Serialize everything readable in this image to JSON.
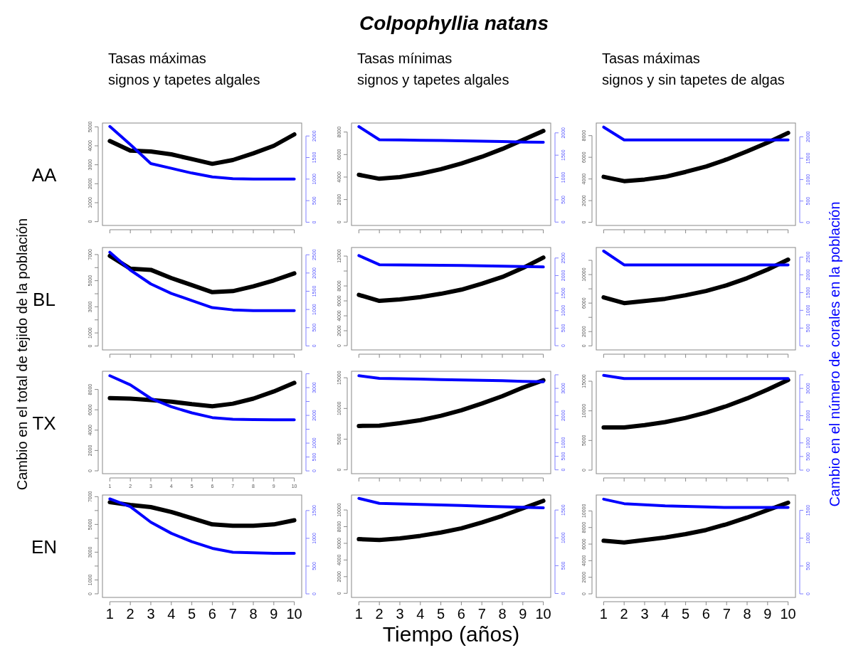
{
  "chart_data": [
    {
      "type": "line",
      "title": "Tasas máximas",
      "subtitle": "signos y tapetes algales",
      "ylabel": "AA",
      "annotations": [
        "Colpophyllia natans",
        "Cambio en el total de tejido de la población",
        "Cambio en el número de corales en la población"
      ],
      "x": [
        1,
        2,
        3,
        4,
        5,
        6,
        7,
        8,
        9,
        10
      ],
      "xlim": [
        0.64,
        10.36
      ],
      "xticks": [
        {
          "value": 1,
          "label": null
        },
        {
          "value": 2,
          "label": null
        },
        {
          "value": 3,
          "label": null
        },
        {
          "value": 4,
          "label": null
        },
        {
          "value": 5,
          "label": null
        },
        {
          "value": 6,
          "label": null
        },
        {
          "value": 7,
          "label": null
        },
        {
          "value": 8,
          "label": null
        },
        {
          "value": 9,
          "label": null
        },
        {
          "value": 10,
          "label": null
        }
      ],
      "ylim": [
        -200,
        5200
      ],
      "yticks": [
        0,
        1000,
        2000,
        3000,
        4000,
        5000
      ],
      "y2lim": [
        -75,
        2300
      ],
      "y2ticks": [
        0,
        500,
        1000,
        1500,
        2000
      ],
      "tick_labels": "y",
      "series": [
        {
          "color": "#000000",
          "values": [
            4250,
            3750,
            3700,
            3550,
            3300,
            3050,
            3250,
            3600,
            4000,
            4600
          ]
        },
        {
          "color": "#0000ff",
          "axis": "y2",
          "values": [
            2220,
            1800,
            1360,
            1250,
            1140,
            1050,
            1010,
            1000,
            1000,
            1000
          ]
        }
      ]
    },
    {
      "type": "line",
      "title": "Tasas mínimas",
      "subtitle": "signos y tapetes algales",
      "x": [
        1,
        2,
        3,
        4,
        5,
        6,
        7,
        8,
        9,
        10
      ],
      "xlim": [
        0.64,
        10.36
      ],
      "xticks": [
        {
          "value": 1,
          "label": null
        },
        {
          "value": 2,
          "label": null
        },
        {
          "value": 3,
          "label": null
        },
        {
          "value": 4,
          "label": null
        },
        {
          "value": 5,
          "label": null
        },
        {
          "value": 6,
          "label": null
        },
        {
          "value": 7,
          "label": null
        },
        {
          "value": 8,
          "label": null
        },
        {
          "value": 9,
          "label": null
        },
        {
          "value": 10,
          "label": null
        }
      ],
      "ylim": [
        -300,
        8800
      ],
      "yticks": [
        0,
        2000,
        4000,
        6000,
        8000
      ],
      "y2lim": [
        -75,
        2220
      ],
      "y2ticks": [
        0,
        500,
        1000,
        1500,
        2000
      ],
      "tick_labels": "y",
      "series": [
        {
          "color": "#000000",
          "values": [
            4200,
            3850,
            4000,
            4300,
            4700,
            5200,
            5800,
            6500,
            7300,
            8100
          ]
        },
        {
          "color": "#0000ff",
          "axis": "y2",
          "values": [
            2140,
            1845,
            1840,
            1835,
            1830,
            1820,
            1815,
            1805,
            1795,
            1790
          ]
        }
      ]
    },
    {
      "type": "line",
      "title": "Tasas máximas",
      "subtitle": "signos y sin tapetes de algas",
      "x": [
        1,
        2,
        3,
        4,
        5,
        6,
        7,
        8,
        9,
        10
      ],
      "xlim": [
        0.64,
        10.36
      ],
      "xticks": [
        {
          "value": 1,
          "label": null
        },
        {
          "value": 2,
          "label": null
        },
        {
          "value": 3,
          "label": null
        },
        {
          "value": 4,
          "label": null
        },
        {
          "value": 5,
          "label": null
        },
        {
          "value": 6,
          "label": null
        },
        {
          "value": 7,
          "label": null
        },
        {
          "value": 8,
          "label": null
        },
        {
          "value": 9,
          "label": null
        },
        {
          "value": 10,
          "label": null
        }
      ],
      "ylim": [
        -290,
        9160
      ],
      "yticks": [
        0,
        2000,
        4000,
        6000,
        8000
      ],
      "y2lim": [
        -70,
        2320
      ],
      "y2ticks": [
        0,
        500,
        1000,
        1500,
        2000
      ],
      "tick_labels": "y",
      "series": [
        {
          "color": "#000000",
          "values": [
            4200,
            3800,
            3950,
            4200,
            4650,
            5150,
            5800,
            6550,
            7350,
            8250
          ]
        },
        {
          "color": "#0000ff",
          "axis": "y2",
          "values": [
            2225,
            1925,
            1925,
            1925,
            1925,
            1925,
            1925,
            1925,
            1925,
            1925
          ]
        }
      ]
    },
    {
      "type": "line",
      "ylabel": "BL",
      "x": [
        1,
        2,
        3,
        4,
        5,
        6,
        7,
        8,
        9,
        10
      ],
      "xlim": [
        0.64,
        10.36
      ],
      "xticks": [
        {
          "value": 1,
          "label": null
        },
        {
          "value": 2,
          "label": null
        },
        {
          "value": 3,
          "label": null
        },
        {
          "value": 4,
          "label": null
        },
        {
          "value": 5,
          "label": null
        },
        {
          "value": 6,
          "label": null
        },
        {
          "value": 7,
          "label": null
        },
        {
          "value": 8,
          "label": null
        },
        {
          "value": 9,
          "label": null
        },
        {
          "value": 10,
          "label": null
        }
      ],
      "ylim": [
        -300,
        7540
      ],
      "yticks": [
        0,
        1000,
        {
          "value": 2000,
          "label": null
        },
        3000,
        {
          "value": 4000,
          "label": null
        },
        5000,
        {
          "value": 6000,
          "label": null
        },
        7000
      ],
      "y2lim": [
        -110,
        2700
      ],
      "y2ticks": [
        0,
        500,
        1000,
        1500,
        2000,
        2500
      ],
      "tick_labels": "y",
      "series": [
        {
          "color": "#000000",
          "values": [
            6900,
            5920,
            5830,
            5200,
            4660,
            4120,
            4200,
            4570,
            5020,
            5560
          ]
        },
        {
          "color": "#0000ff",
          "axis": "y2",
          "values": [
            2570,
            2080,
            1700,
            1440,
            1245,
            1050,
            990,
            970,
            970,
            970
          ]
        }
      ]
    },
    {
      "type": "line",
      "x": [
        1,
        2,
        3,
        4,
        5,
        6,
        7,
        8,
        9,
        10
      ],
      "xlim": [
        0.64,
        10.36
      ],
      "xticks": [
        {
          "value": 1,
          "label": null
        },
        {
          "value": 2,
          "label": null
        },
        {
          "value": 3,
          "label": null
        },
        {
          "value": 4,
          "label": null
        },
        {
          "value": 5,
          "label": null
        },
        {
          "value": 6,
          "label": null
        },
        {
          "value": 7,
          "label": null
        },
        {
          "value": 8,
          "label": null
        },
        {
          "value": 9,
          "label": null
        },
        {
          "value": 10,
          "label": null
        }
      ],
      "ylim": [
        -570,
        13150
      ],
      "yticks": [
        0,
        2000,
        4000,
        6000,
        8000,
        {
          "value": 10000,
          "label": null
        },
        12000
      ],
      "y2lim": [
        -120,
        2800
      ],
      "y2ticks": [
        0,
        500,
        1000,
        1500,
        2000,
        2500
      ],
      "tick_labels": "y",
      "series": [
        {
          "color": "#000000",
          "values": [
            6800,
            6000,
            6200,
            6500,
            6950,
            7500,
            8300,
            9200,
            10400,
            11800
          ]
        },
        {
          "color": "#0000ff",
          "axis": "y2",
          "values": [
            2570,
            2310,
            2305,
            2300,
            2295,
            2290,
            2280,
            2270,
            2260,
            2245
          ]
        }
      ]
    },
    {
      "type": "line",
      "x": [
        1,
        2,
        3,
        4,
        5,
        6,
        7,
        8,
        9,
        10
      ],
      "xlim": [
        0.64,
        10.36
      ],
      "xticks": [
        {
          "value": 1,
          "label": null
        },
        {
          "value": 2,
          "label": null
        },
        {
          "value": 3,
          "label": null
        },
        {
          "value": 4,
          "label": null
        },
        {
          "value": 5,
          "label": null
        },
        {
          "value": 6,
          "label": null
        },
        {
          "value": 7,
          "label": null
        },
        {
          "value": 8,
          "label": null
        },
        {
          "value": 9,
          "label": null
        },
        {
          "value": 10,
          "label": null
        }
      ],
      "ylim": [
        -570,
        13800
      ],
      "yticks": [
        0,
        2000,
        {
          "value": 4000,
          "label": null
        },
        6000,
        {
          "value": 8000,
          "label": null
        },
        10000,
        {
          "value": 12000,
          "label": null
        }
      ],
      "y2lim": [
        -115,
        2770
      ],
      "y2ticks": [
        0,
        500,
        1000,
        1500,
        2000,
        2500
      ],
      "tick_labels": "y",
      "series": [
        {
          "color": "#000000",
          "values": [
            6800,
            6000,
            6300,
            6600,
            7100,
            7700,
            8500,
            9500,
            10700,
            12100
          ]
        },
        {
          "color": "#0000ff",
          "axis": "y2",
          "values": [
            2670,
            2280,
            2280,
            2280,
            2280,
            2280,
            2280,
            2280,
            2280,
            2280
          ]
        }
      ]
    },
    {
      "type": "line",
      "ylabel": "TX",
      "x": [
        1,
        2,
        3,
        4,
        5,
        6,
        7,
        8,
        9,
        10
      ],
      "xlim": [
        0.64,
        10.36
      ],
      "xticks": [
        1,
        2,
        3,
        4,
        5,
        6,
        7,
        8,
        9,
        10
      ],
      "ylim": [
        -280,
        9790
      ],
      "yticks": [
        0,
        2000,
        4000,
        6000,
        8000
      ],
      "y2lim": [
        -100,
        3590
      ],
      "y2ticks": [
        0,
        500,
        1000,
        {
          "value": 1500,
          "label": null
        },
        2000,
        {
          "value": 2500,
          "label": null
        },
        3000,
        {
          "value": 3500,
          "label": null
        }
      ],
      "series": [
        {
          "color": "#000000",
          "values": [
            7150,
            7100,
            6950,
            6800,
            6550,
            6350,
            6600,
            7100,
            7800,
            8650
          ]
        },
        {
          "color": "#0000ff",
          "axis": "y2",
          "values": [
            3430,
            3100,
            2610,
            2310,
            2090,
            1920,
            1860,
            1850,
            1840,
            1840
          ]
        }
      ]
    },
    {
      "type": "line",
      "x": [
        1,
        2,
        3,
        4,
        5,
        6,
        7,
        8,
        9,
        10
      ],
      "xlim": [
        0.64,
        10.36
      ],
      "xticks": [
        {
          "value": 1,
          "label": null
        },
        {
          "value": 2,
          "label": null
        },
        {
          "value": 3,
          "label": null
        },
        {
          "value": 4,
          "label": null
        },
        {
          "value": 5,
          "label": null
        },
        {
          "value": 6,
          "label": null
        },
        {
          "value": 7,
          "label": null
        },
        {
          "value": 8,
          "label": null
        },
        {
          "value": 9,
          "label": null
        },
        {
          "value": 10,
          "label": null
        }
      ],
      "ylim": [
        -620,
        16060
      ],
      "yticks": [
        0,
        5000,
        10000,
        15000
      ],
      "y2lim": [
        -140,
        3630
      ],
      "y2ticks": [
        0,
        500,
        1000,
        {
          "value": 1500,
          "label": null
        },
        2000,
        {
          "value": 2500,
          "label": null
        },
        3000,
        {
          "value": 3500,
          "label": null
        }
      ],
      "tick_labels": "y",
      "series": [
        {
          "color": "#000000",
          "values": [
            7150,
            7200,
            7600,
            8100,
            8800,
            9700,
            10800,
            12000,
            13400,
            14600
          ]
        },
        {
          "color": "#0000ff",
          "axis": "y2",
          "values": [
            3465,
            3370,
            3355,
            3340,
            3325,
            3310,
            3295,
            3280,
            3260,
            3245
          ]
        }
      ]
    },
    {
      "type": "line",
      "x": [
        1,
        2,
        3,
        4,
        5,
        6,
        7,
        8,
        9,
        10
      ],
      "xlim": [
        0.64,
        10.36
      ],
      "xticks": [
        {
          "value": 1,
          "label": null
        },
        {
          "value": 2,
          "label": null
        },
        {
          "value": 3,
          "label": null
        },
        {
          "value": 4,
          "label": null
        },
        {
          "value": 5,
          "label": null
        },
        {
          "value": 6,
          "label": null
        },
        {
          "value": 7,
          "label": null
        },
        {
          "value": 8,
          "label": null
        },
        {
          "value": 9,
          "label": null
        },
        {
          "value": 10,
          "label": null
        }
      ],
      "ylim": [
        -600,
        16680
      ],
      "yticks": [
        0,
        5000,
        10000,
        15000
      ],
      "y2lim": [
        -130,
        3630
      ],
      "y2ticks": [
        0,
        500,
        1000,
        {
          "value": 1500,
          "label": null
        },
        2000,
        {
          "value": 2500,
          "label": null
        },
        3000,
        {
          "value": 3500,
          "label": null
        }
      ],
      "tick_labels": "y",
      "series": [
        {
          "color": "#000000",
          "values": [
            7200,
            7200,
            7600,
            8100,
            8800,
            9700,
            10800,
            12100,
            13600,
            15200
          ]
        },
        {
          "color": "#0000ff",
          "axis": "y2",
          "values": [
            3480,
            3365,
            3365,
            3365,
            3365,
            3365,
            3365,
            3365,
            3365,
            3365
          ]
        }
      ]
    },
    {
      "type": "line",
      "ylabel": "EN",
      "x": [
        1,
        2,
        3,
        4,
        5,
        6,
        7,
        8,
        9,
        10
      ],
      "xlim": [
        0.64,
        10.36
      ],
      "xticks": [
        1,
        2,
        3,
        4,
        5,
        6,
        7,
        8,
        9,
        10
      ],
      "ylim": [
        -260,
        7120
      ],
      "yticks": [
        0,
        1000,
        {
          "value": 2000,
          "label": null
        },
        3000,
        {
          "value": 4000,
          "label": null
        },
        5000,
        {
          "value": 6000,
          "label": null
        },
        7000
      ],
      "y2lim": [
        -64,
        1780
      ],
      "y2ticks": [
        0,
        500,
        1000,
        1500
      ],
      "series": [
        {
          "color": "#000000",
          "values": [
            6600,
            6400,
            6250,
            5900,
            5450,
            5000,
            4900,
            4900,
            5000,
            5300
          ]
        },
        {
          "color": "#0000ff",
          "axis": "y2",
          "values": [
            1710,
            1570,
            1290,
            1090,
            940,
            820,
            750,
            740,
            730,
            730
          ]
        }
      ]
    },
    {
      "type": "line",
      "xlabel": "Tiempo (años)",
      "x": [
        1,
        2,
        3,
        4,
        5,
        6,
        7,
        8,
        9,
        10
      ],
      "xlim": [
        0.64,
        10.36
      ],
      "xticks": [
        1,
        2,
        3,
        4,
        5,
        6,
        7,
        8,
        9,
        10
      ],
      "ylim": [
        -490,
        11800
      ],
      "yticks": [
        0,
        2000,
        4000,
        6000,
        8000,
        10000
      ],
      "y2lim": [
        -70,
        1770
      ],
      "y2ticks": [
        0,
        500,
        1000,
        1500
      ],
      "series": [
        {
          "color": "#000000",
          "values": [
            6500,
            6400,
            6600,
            6900,
            7300,
            7800,
            8500,
            9300,
            10200,
            11100
          ]
        },
        {
          "color": "#0000ff",
          "axis": "y2",
          "values": [
            1710,
            1620,
            1610,
            1600,
            1590,
            1580,
            1570,
            1560,
            1550,
            1540
          ]
        }
      ]
    },
    {
      "type": "line",
      "x": [
        1,
        2,
        3,
        4,
        5,
        6,
        7,
        8,
        9,
        10
      ],
      "xlim": [
        0.64,
        10.36
      ],
      "xticks": [
        1,
        2,
        3,
        4,
        5,
        6,
        7,
        8,
        9,
        10
      ],
      "ylim": [
        -430,
        11920
      ],
      "yticks": [
        0,
        2000,
        4000,
        6000,
        8000,
        10000
      ],
      "y2lim": [
        -64,
        1775
      ],
      "y2ticks": [
        0,
        500,
        1000,
        1500
      ],
      "series": [
        {
          "color": "#000000",
          "values": [
            6400,
            6200,
            6500,
            6800,
            7200,
            7700,
            8400,
            9200,
            10100,
            11000
          ]
        },
        {
          "color": "#0000ff",
          "axis": "y2",
          "values": [
            1700,
            1620,
            1600,
            1580,
            1570,
            1560,
            1550,
            1550,
            1550,
            1550
          ]
        }
      ]
    }
  ]
}
